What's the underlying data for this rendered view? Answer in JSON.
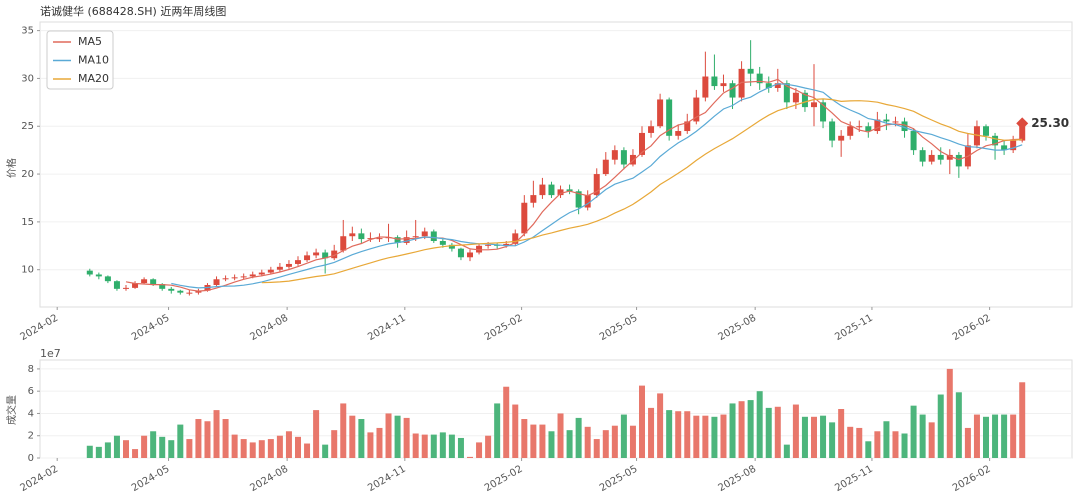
{
  "chart_data": [
    {
      "type": "candlestick",
      "title": "诺诚健华 (688428.SH) 近两年周线图",
      "ylabel": "价格",
      "xlim": [
        -5.5,
        108.5
      ],
      "xticks": [
        {
          "value": -3.6,
          "label": "2024-02"
        },
        {
          "value": 8.7,
          "label": "2024-05"
        },
        {
          "value": 21.8,
          "label": "2024-08"
        },
        {
          "value": 34.8,
          "label": "2024-11"
        },
        {
          "value": 47.7,
          "label": "2025-02"
        },
        {
          "value": 60.4,
          "label": "2025-05"
        },
        {
          "value": 73.5,
          "label": "2025-08"
        },
        {
          "value": 86.4,
          "label": "2025-11"
        },
        {
          "value": 99.4,
          "label": "2026-02"
        }
      ],
      "ylim": [
        6.1,
        35.9
      ],
      "yticks": [
        10,
        15,
        20,
        25,
        30,
        35
      ],
      "grid": true,
      "legend": "upper left",
      "up_color": "#dc4a3d",
      "down_color": "#2fae6b",
      "open": [
        9.9,
        9.5,
        9.3,
        8.8,
        8.0,
        8.1,
        8.6,
        9.0,
        8.5,
        8.0,
        7.8,
        7.6,
        7.6,
        7.8,
        8.4,
        9.0,
        9.1,
        9.2,
        9.3,
        9.5,
        9.7,
        10.0,
        10.3,
        10.6,
        11.0,
        11.5,
        11.8,
        11.2,
        12.0,
        13.5,
        13.8,
        13.2,
        13.3,
        13.3,
        13.4,
        12.8,
        13.4,
        13.5,
        14.0,
        13.0,
        12.6,
        12.2,
        11.3,
        11.8,
        12.5,
        12.6,
        12.5,
        12.7,
        13.8,
        17.0,
        17.8,
        18.9,
        17.8,
        18.4,
        18.2,
        16.5,
        17.8,
        20.0,
        21.5,
        22.5,
        21.0,
        22.0,
        24.3,
        25.0,
        27.8,
        24.0,
        24.5,
        25.5,
        28.0,
        30.2,
        29.2,
        29.5,
        28.0,
        31.0,
        30.5,
        29.5,
        29.0,
        29.5,
        27.5,
        28.5,
        27.0,
        27.5,
        25.5,
        23.5,
        24.0,
        25.0,
        25.0,
        24.5,
        25.7,
        25.5,
        25.5,
        24.5,
        22.5,
        21.3,
        22.0,
        21.5,
        22.0,
        20.8,
        23.0,
        25.0,
        24.0,
        23.0,
        22.5,
        23.5
      ],
      "high": [
        10.1,
        9.7,
        9.4,
        8.9,
        8.4,
        8.8,
        9.2,
        9.1,
        8.6,
        8.2,
        7.9,
        7.9,
        8.0,
        8.6,
        9.3,
        9.4,
        9.5,
        9.6,
        9.8,
        10.0,
        10.3,
        10.7,
        11.0,
        11.4,
        11.9,
        12.2,
        12.1,
        12.6,
        15.2,
        14.5,
        14.3,
        13.9,
        13.8,
        14.8,
        13.6,
        14.1,
        15.2,
        14.4,
        14.2,
        13.2,
        12.8,
        12.3,
        12.1,
        12.7,
        12.9,
        12.8,
        13.0,
        14.2,
        17.8,
        19.3,
        19.6,
        19.2,
        18.8,
        18.9,
        18.4,
        18.3,
        20.6,
        22.3,
        23.0,
        22.8,
        22.6,
        25.0,
        25.6,
        28.4,
        28.0,
        25.2,
        26.3,
        28.8,
        32.8,
        32.5,
        30.4,
        29.8,
        31.8,
        34.0,
        31.2,
        30.2,
        31.0,
        29.8,
        29.0,
        28.8,
        31.5,
        27.8,
        25.8,
        24.6,
        25.5,
        25.6,
        25.4,
        26.5,
        26.3,
        26.0,
        25.9,
        24.8,
        22.8,
        22.5,
        22.8,
        22.6,
        22.3,
        24.2,
        25.6,
        25.2,
        24.3,
        23.5,
        24.0,
        25.8
      ],
      "low": [
        9.3,
        9.0,
        8.6,
        7.8,
        7.8,
        8.0,
        8.5,
        8.3,
        7.8,
        7.5,
        7.4,
        7.3,
        7.4,
        7.7,
        8.3,
        8.8,
        8.9,
        9.0,
        9.1,
        9.3,
        9.5,
        9.8,
        10.1,
        10.4,
        10.8,
        11.2,
        9.6,
        11.0,
        11.8,
        13.0,
        12.8,
        12.9,
        12.9,
        12.9,
        12.3,
        12.6,
        13.0,
        13.2,
        12.8,
        12.3,
        11.9,
        11.0,
        10.9,
        11.6,
        12.2,
        12.2,
        12.3,
        12.5,
        13.5,
        16.5,
        17.4,
        17.5,
        17.5,
        17.9,
        15.8,
        16.2,
        17.5,
        19.8,
        21.0,
        20.5,
        20.8,
        21.8,
        23.8,
        24.8,
        23.5,
        23.6,
        24.2,
        25.2,
        27.6,
        28.8,
        28.6,
        26.8,
        27.6,
        29.2,
        28.8,
        28.5,
        28.6,
        26.8,
        26.8,
        26.5,
        25.0,
        24.8,
        22.8,
        21.8,
        23.6,
        24.4,
        23.8,
        24.2,
        24.6,
        25.0,
        23.8,
        22.0,
        20.8,
        21.0,
        21.0,
        20.0,
        19.6,
        20.5,
        22.7,
        23.5,
        21.5,
        22.0,
        22.2,
        23.3
      ],
      "close": [
        9.5,
        9.3,
        8.8,
        8.0,
        8.1,
        8.6,
        9.0,
        8.5,
        8.0,
        7.8,
        7.6,
        7.6,
        7.8,
        8.4,
        9.0,
        9.1,
        9.2,
        9.3,
        9.5,
        9.7,
        10.0,
        10.3,
        10.6,
        11.0,
        11.5,
        11.8,
        11.2,
        12.0,
        13.5,
        13.8,
        13.2,
        13.3,
        13.3,
        13.4,
        12.8,
        13.4,
        13.5,
        14.0,
        13.0,
        12.6,
        12.2,
        11.3,
        11.8,
        12.5,
        12.6,
        12.5,
        12.7,
        13.8,
        17.0,
        17.8,
        18.9,
        17.8,
        18.4,
        18.2,
        16.5,
        17.8,
        20.0,
        21.5,
        22.5,
        21.0,
        22.0,
        24.3,
        25.0,
        27.8,
        24.0,
        24.5,
        25.5,
        28.0,
        30.2,
        29.2,
        29.5,
        28.0,
        31.0,
        30.5,
        29.5,
        29.0,
        29.5,
        27.5,
        28.5,
        27.0,
        27.5,
        25.5,
        23.5,
        24.0,
        25.0,
        25.0,
        24.5,
        25.7,
        25.5,
        25.5,
        24.5,
        22.5,
        21.3,
        22.0,
        21.5,
        22.0,
        20.8,
        23.0,
        25.0,
        24.0,
        23.0,
        22.5,
        23.5,
        25.3
      ],
      "series": [
        {
          "name": "MA5",
          "color": "#e06a5c",
          "values": [
            null,
            null,
            null,
            null,
            8.74,
            8.56,
            8.5,
            8.44,
            8.44,
            8.38,
            8.18,
            7.9,
            7.76,
            7.84,
            8.08,
            8.38,
            8.7,
            9.0,
            9.22,
            9.36,
            9.54,
            9.76,
            10.02,
            10.32,
            10.68,
            11.04,
            11.22,
            11.5,
            12.0,
            12.46,
            12.74,
            13.16,
            13.42,
            13.4,
            13.2,
            13.24,
            13.28,
            13.42,
            13.34,
            13.3,
            13.06,
            12.62,
            12.18,
            12.08,
            12.08,
            12.14,
            12.42,
            12.82,
            13.72,
            14.76,
            16.04,
            17.06,
            17.98,
            18.22,
            17.96,
            17.74,
            18.18,
            18.8,
            19.66,
            20.56,
            21.4,
            22.26,
            22.96,
            24.02,
            24.62,
            25.12,
            25.36,
            25.96,
            26.44,
            27.48,
            28.48,
            28.98,
            29.58,
            29.64,
            29.7,
            29.6,
            29.9,
            29.2,
            28.8,
            28.3,
            28.0,
            27.2,
            26.4,
            25.5,
            25.1,
            24.6,
            24.4,
            24.84,
            25.14,
            25.24,
            25.14,
            24.74,
            23.86,
            23.16,
            22.36,
            21.86,
            21.52,
            21.86,
            22.46,
            22.96,
            23.16,
            23.5,
            23.6,
            23.66
          ]
        },
        {
          "name": "MA10",
          "color": "#5aaad6",
          "values": [
            null,
            null,
            null,
            null,
            null,
            null,
            null,
            null,
            null,
            8.56,
            8.37,
            8.2,
            8.1,
            8.14,
            8.23,
            8.28,
            8.3,
            8.38,
            8.53,
            8.72,
            8.96,
            9.23,
            9.51,
            9.77,
            10.02,
            10.29,
            10.49,
            10.76,
            11.16,
            11.57,
            11.89,
            12.19,
            12.46,
            12.7,
            12.83,
            12.99,
            13.22,
            13.42,
            13.37,
            13.25,
            13.15,
            12.95,
            12.8,
            12.71,
            12.69,
            12.6,
            12.52,
            12.5,
            12.9,
            13.42,
            14.09,
            14.74,
            15.4,
            15.97,
            16.36,
            16.89,
            17.62,
            18.39,
            18.94,
            19.26,
            19.57,
            20.22,
            20.88,
            21.84,
            22.59,
            23.26,
            23.81,
            24.46,
            25.23,
            26.05,
            26.8,
            27.17,
            27.77,
            28.04,
            28.59,
            29.04,
            29.44,
            29.39,
            29.22,
            29.0,
            28.8,
            28.55,
            27.8,
            27.15,
            26.7,
            26.3,
            25.8,
            25.62,
            25.32,
            25.17,
            24.87,
            24.57,
            24.35,
            24.15,
            23.8,
            23.5,
            23.13,
            22.86,
            22.81,
            22.66,
            22.51,
            22.51,
            22.73,
            23.06
          ]
        },
        {
          "name": "MA20",
          "color": "#e8a838",
          "values": [
            null,
            null,
            null,
            null,
            null,
            null,
            null,
            null,
            null,
            null,
            null,
            null,
            null,
            null,
            null,
            null,
            null,
            null,
            null,
            8.64,
            8.67,
            8.72,
            8.81,
            8.96,
            9.13,
            9.29,
            9.4,
            9.57,
            9.85,
            10.15,
            10.43,
            10.71,
            10.99,
            11.24,
            11.43,
            11.64,
            11.86,
            12.09,
            12.27,
            12.41,
            12.52,
            12.57,
            12.63,
            12.71,
            12.76,
            12.8,
            12.87,
            12.96,
            13.14,
            13.34,
            13.62,
            13.85,
            14.1,
            14.34,
            14.53,
            14.75,
            15.07,
            15.45,
            15.92,
            16.34,
            16.83,
            17.48,
            18.14,
            18.91,
            19.48,
            20.08,
            20.72,
            21.43,
            22.09,
            22.66,
            23.19,
            23.7,
            24.33,
            24.94,
            25.59,
            26.15,
            26.63,
            26.93,
            27.23,
            27.53,
            27.8,
            27.86,
            27.79,
            27.6,
            27.65,
            27.67,
            27.62,
            27.51,
            27.27,
            27.09,
            26.84,
            26.56,
            26.08,
            25.65,
            25.25,
            24.9,
            24.47,
            24.24,
            24.07,
            23.92,
            23.69,
            23.54,
            23.54,
            23.61
          ]
        }
      ],
      "last_label": {
        "value": 25.3,
        "label": "25.30"
      }
    },
    {
      "type": "bar",
      "ylabel": "成交量",
      "offset_text": "1e7",
      "xlim": [
        -5.5,
        108.5
      ],
      "xticks": [
        {
          "value": -3.6,
          "label": "2024-02"
        },
        {
          "value": 8.7,
          "label": "2024-05"
        },
        {
          "value": 21.8,
          "label": "2024-08"
        },
        {
          "value": 34.8,
          "label": "2024-11"
        },
        {
          "value": 47.7,
          "label": "2025-02"
        },
        {
          "value": 60.4,
          "label": "2025-05"
        },
        {
          "value": 73.5,
          "label": "2025-08"
        },
        {
          "value": 86.4,
          "label": "2025-11"
        },
        {
          "value": 99.4,
          "label": "2026-02"
        }
      ],
      "ylim": [
        0,
        8.8
      ],
      "yticks": [
        0,
        2,
        4,
        6,
        8
      ],
      "grid": true,
      "up_color": "#e8776b",
      "down_color": "#4db57c",
      "values": [
        1.1,
        1.0,
        1.4,
        2.0,
        1.6,
        0.8,
        2.0,
        2.4,
        1.9,
        1.6,
        3.0,
        1.7,
        3.5,
        3.3,
        4.3,
        3.5,
        2.1,
        1.7,
        1.4,
        1.6,
        1.7,
        2.0,
        2.4,
        1.9,
        1.3,
        4.3,
        1.2,
        2.5,
        4.9,
        3.8,
        3.5,
        2.3,
        2.7,
        4.0,
        3.8,
        3.6,
        2.2,
        2.1,
        2.1,
        2.3,
        2.1,
        1.8,
        0.1,
        1.4,
        2.0,
        4.9,
        6.4,
        4.8,
        3.5,
        3.0,
        3.0,
        2.4,
        4.0,
        2.5,
        3.6,
        2.8,
        1.7,
        2.5,
        2.9,
        3.9,
        2.9,
        6.5,
        4.5,
        5.8,
        4.3,
        4.2,
        4.2,
        3.8,
        3.8,
        3.7,
        3.9,
        4.9,
        5.1,
        5.2,
        6.0,
        4.5,
        4.6,
        1.2,
        4.8,
        3.7,
        3.7,
        3.8,
        3.2,
        4.4,
        2.8,
        2.7,
        1.5,
        2.4,
        3.3,
        2.4,
        2.2,
        4.7,
        3.9,
        3.2,
        5.7,
        8.0,
        5.9,
        2.7,
        3.9,
        3.7,
        3.9,
        3.9,
        3.9,
        6.8
      ]
    }
  ]
}
